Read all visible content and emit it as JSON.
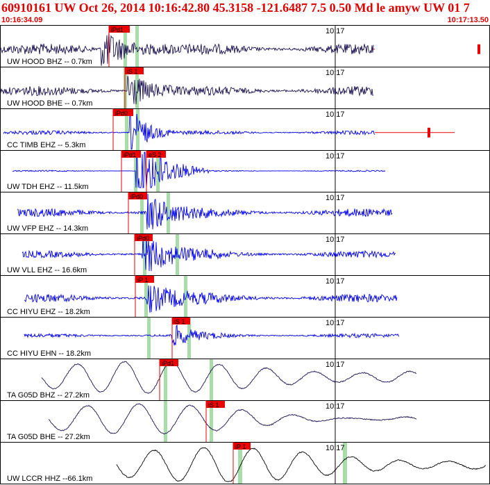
{
  "header": {
    "title": "60910161 UW Oct 26, 2014 10:16:42.80   45.3158 -121.6487  7.5 0.50 Md le amyw UW 01   7",
    "start_time": "10:16:34.09",
    "end_time": "10:17:13.50"
  },
  "colors": {
    "header_text": "#e00000",
    "trace_blue": "#0000ee",
    "trace_navy": "#1a1050",
    "trace_black": "#000000",
    "pick_red": "#ee0000",
    "window_green": "#a8dca8",
    "panel_border": "#000000"
  },
  "time_axis": {
    "tick_label": "10:17"
  },
  "traces": [
    {
      "label": "UW HOOD BHZ -- 0.7km",
      "color": "trace_navy",
      "style": "noise_burst",
      "picks": [
        {
          "label": "iPd1"
        }
      ]
    },
    {
      "label": "UW HOOD BHE -- 0.7km",
      "color": "trace_navy",
      "style": "noise_burst",
      "picks": [
        {
          "label": "iS 1"
        }
      ]
    },
    {
      "label": "CC TIMB EHZ -- 5.3km",
      "color": "trace_blue",
      "style": "noise_burst",
      "picks": [
        {
          "label": "iPd0"
        }
      ]
    },
    {
      "label": "UW TDH EHZ -- 11.5km",
      "color": "trace_blue",
      "style": "quiet_burst",
      "picks": [
        {
          "label": "iPd1"
        },
        {
          "label": "eS 2"
        }
      ]
    },
    {
      "label": "UW VFP EHZ -- 14.3km",
      "color": "trace_blue",
      "style": "noisy_burst",
      "picks": [
        {
          "label": "iPd0"
        }
      ]
    },
    {
      "label": "UW VLL EHZ -- 16.6km",
      "color": "trace_blue",
      "style": "noisy_burst",
      "picks": [
        {
          "label": "iPd0"
        }
      ]
    },
    {
      "label": "CC HIYU EHZ -- 18.2km",
      "color": "trace_blue",
      "style": "noisy_burst",
      "picks": [
        {
          "label": "iP 1"
        }
      ]
    },
    {
      "label": "CC HIYU EHN -- 18.2km",
      "color": "trace_blue",
      "style": "noisy_burst",
      "picks": [
        {
          "label": "iS 1"
        }
      ]
    },
    {
      "label": "TA G05D BHZ -- 27.2km",
      "color": "trace_navy",
      "style": "wave",
      "picks": [
        {
          "label": "iPd1"
        }
      ]
    },
    {
      "label": "TA G05D BHE -- 27.2km",
      "color": "trace_navy",
      "style": "wave",
      "picks": [
        {
          "label": "iS 1"
        }
      ]
    },
    {
      "label": "UW LCCR HHZ --66.1km",
      "color": "trace_black",
      "style": "wave",
      "picks": [
        {
          "label": "iP 1"
        }
      ]
    }
  ]
}
